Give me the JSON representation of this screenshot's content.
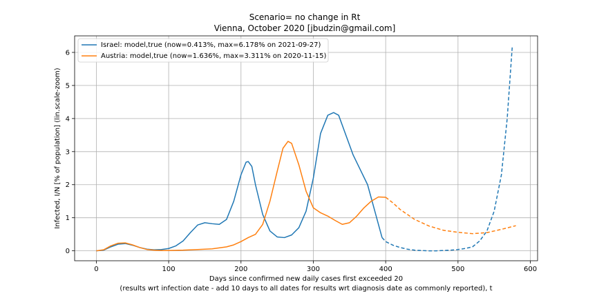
{
  "chart_data": {
    "type": "line",
    "title_line1": "Scenario= no change in Rt",
    "title_line2": "Vienna, October 2020 [jbudzin@gmail.com]",
    "xlabel_line1": "Days since confirmed new daily cases first exceeded 20",
    "xlabel_line2": "(results wrt infection date - add 10 days to all dates for results wrt diagnosis date as commonly reported), t",
    "ylabel": "Infected, I/N [% of population] (lin.scale-zoom)",
    "xlim": [
      -30,
      610
    ],
    "ylim": [
      -0.3,
      6.5
    ],
    "xticks": [
      0,
      100,
      200,
      300,
      400,
      500,
      600
    ],
    "xtick_labels": [
      "0",
      "100",
      "200",
      "300",
      "400",
      "500",
      "600"
    ],
    "yticks": [
      0,
      1,
      2,
      3,
      4,
      5,
      6
    ],
    "ytick_labels": [
      "0",
      "1",
      "2",
      "3",
      "4",
      "5",
      "6"
    ],
    "grid": true,
    "legend_position": "top-left",
    "series": [
      {
        "name": "Israel: model,true (now=0.413%, max=6.178% on 2021-09-27)",
        "color": "#1f77b4",
        "solid_end_x": 395,
        "points": [
          [
            0,
            0
          ],
          [
            10,
            0.02
          ],
          [
            20,
            0.12
          ],
          [
            30,
            0.2
          ],
          [
            40,
            0.22
          ],
          [
            50,
            0.17
          ],
          [
            60,
            0.1
          ],
          [
            70,
            0.05
          ],
          [
            80,
            0.03
          ],
          [
            90,
            0.04
          ],
          [
            100,
            0.07
          ],
          [
            110,
            0.15
          ],
          [
            120,
            0.3
          ],
          [
            130,
            0.55
          ],
          [
            140,
            0.78
          ],
          [
            150,
            0.85
          ],
          [
            160,
            0.82
          ],
          [
            170,
            0.8
          ],
          [
            180,
            0.95
          ],
          [
            190,
            1.5
          ],
          [
            200,
            2.3
          ],
          [
            207,
            2.68
          ],
          [
            210,
            2.7
          ],
          [
            215,
            2.55
          ],
          [
            220,
            2.0
          ],
          [
            230,
            1.1
          ],
          [
            240,
            0.6
          ],
          [
            250,
            0.42
          ],
          [
            260,
            0.4
          ],
          [
            270,
            0.48
          ],
          [
            280,
            0.7
          ],
          [
            290,
            1.2
          ],
          [
            300,
            2.2
          ],
          [
            310,
            3.55
          ],
          [
            320,
            4.1
          ],
          [
            328,
            4.18
          ],
          [
            335,
            4.1
          ],
          [
            345,
            3.5
          ],
          [
            355,
            2.9
          ],
          [
            365,
            2.45
          ],
          [
            375,
            2.0
          ],
          [
            385,
            1.2
          ],
          [
            395,
            0.4
          ],
          [
            400,
            0.28
          ],
          [
            410,
            0.17
          ],
          [
            420,
            0.1
          ],
          [
            430,
            0.05
          ],
          [
            440,
            0.02
          ],
          [
            450,
            0.01
          ],
          [
            460,
            0.0
          ],
          [
            470,
            0.0
          ],
          [
            480,
            0.01
          ],
          [
            490,
            0.02
          ],
          [
            500,
            0.04
          ],
          [
            510,
            0.07
          ],
          [
            520,
            0.12
          ],
          [
            530,
            0.3
          ],
          [
            540,
            0.6
          ],
          [
            550,
            1.2
          ],
          [
            560,
            2.3
          ],
          [
            568,
            4.0
          ],
          [
            575,
            6.178
          ]
        ]
      },
      {
        "name": "Austria: model,true (now=1.636%, max=3.311% on 2020-11-15)",
        "color": "#ff7f0e",
        "solid_end_x": 400,
        "points": [
          [
            0,
            0
          ],
          [
            10,
            0.03
          ],
          [
            20,
            0.15
          ],
          [
            30,
            0.23
          ],
          [
            40,
            0.24
          ],
          [
            50,
            0.18
          ],
          [
            60,
            0.1
          ],
          [
            70,
            0.04
          ],
          [
            80,
            0.02
          ],
          [
            90,
            0.01
          ],
          [
            100,
            0.01
          ],
          [
            120,
            0.02
          ],
          [
            140,
            0.04
          ],
          [
            160,
            0.06
          ],
          [
            180,
            0.12
          ],
          [
            190,
            0.18
          ],
          [
            200,
            0.28
          ],
          [
            210,
            0.4
          ],
          [
            220,
            0.5
          ],
          [
            230,
            0.8
          ],
          [
            240,
            1.5
          ],
          [
            250,
            2.4
          ],
          [
            258,
            3.1
          ],
          [
            265,
            3.31
          ],
          [
            270,
            3.25
          ],
          [
            280,
            2.6
          ],
          [
            290,
            1.8
          ],
          [
            300,
            1.3
          ],
          [
            310,
            1.15
          ],
          [
            320,
            1.05
          ],
          [
            330,
            0.92
          ],
          [
            340,
            0.8
          ],
          [
            350,
            0.85
          ],
          [
            360,
            1.05
          ],
          [
            370,
            1.3
          ],
          [
            380,
            1.5
          ],
          [
            390,
            1.63
          ],
          [
            400,
            1.62
          ],
          [
            410,
            1.45
          ],
          [
            420,
            1.25
          ],
          [
            440,
            0.95
          ],
          [
            460,
            0.75
          ],
          [
            480,
            0.62
          ],
          [
            500,
            0.56
          ],
          [
            520,
            0.52
          ],
          [
            540,
            0.55
          ],
          [
            560,
            0.65
          ],
          [
            580,
            0.76
          ]
        ]
      }
    ]
  }
}
